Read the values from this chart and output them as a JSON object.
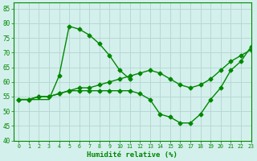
{
  "xlabel": "Humidité relative (%)",
  "xlim": [
    -0.5,
    23
  ],
  "ylim": [
    40,
    87
  ],
  "yticks": [
    40,
    45,
    50,
    55,
    60,
    65,
    70,
    75,
    80,
    85
  ],
  "xticks": [
    0,
    1,
    2,
    3,
    4,
    5,
    6,
    7,
    8,
    9,
    10,
    11,
    12,
    13,
    14,
    15,
    16,
    17,
    18,
    19,
    20,
    21,
    22,
    23
  ],
  "bg_color": "#d4f0ec",
  "line_color": "#008800",
  "grid_color": "#b8d8d4",
  "series": {
    "line1_x": [
      4,
      5,
      6,
      7,
      8,
      9,
      10,
      11
    ],
    "line1_y": [
      62,
      79,
      78,
      76,
      73,
      69,
      64,
      61
    ],
    "line1_full_x": [
      0,
      1,
      2,
      3,
      4,
      5,
      6,
      7,
      8,
      9,
      10,
      11
    ],
    "line1_full_y": [
      54,
      54,
      54,
      54,
      62,
      79,
      78,
      76,
      73,
      69,
      64,
      61
    ],
    "line2_x": [
      0,
      1,
      2,
      3,
      4,
      5,
      6,
      7,
      8,
      9,
      10,
      11,
      12,
      13,
      14,
      15,
      16,
      17,
      18,
      19,
      20,
      21,
      22,
      23
    ],
    "line2_y": [
      54,
      54,
      55,
      55,
      56,
      57,
      57,
      57,
      57,
      57,
      57,
      57,
      56,
      54,
      49,
      48,
      46,
      46,
      49,
      54,
      58,
      64,
      67,
      72
    ],
    "line3_x": [
      0,
      1,
      2,
      3,
      4,
      5,
      6,
      7,
      8,
      9,
      10,
      11,
      12,
      13,
      14,
      15,
      16,
      17,
      18,
      19,
      20,
      21,
      22,
      23
    ],
    "line3_y": [
      54,
      54,
      55,
      55,
      56,
      57,
      58,
      58,
      59,
      60,
      61,
      62,
      63,
      64,
      63,
      61,
      59,
      58,
      59,
      61,
      64,
      67,
      69,
      71
    ]
  }
}
